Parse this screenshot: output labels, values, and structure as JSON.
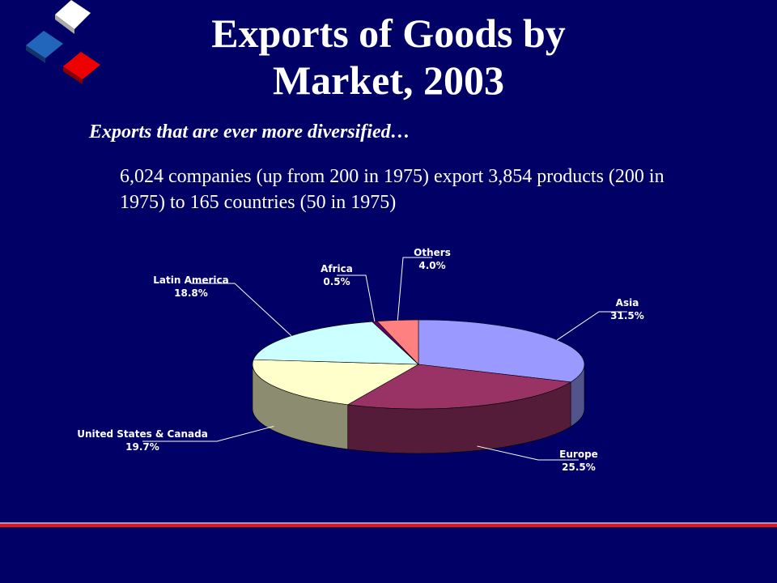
{
  "chart_data": {
    "type": "pie",
    "title": "Exports of Goods by Market, 2003",
    "subtitle": "Exports that are ever more diversified…",
    "text": "6,024 companies (up from 200 in 1975) export 3,854 products (200 in 1975) to 165 countries (50 in 1975)",
    "categories": [
      "Asia",
      "Europe",
      "United States & Canada",
      "Latin America",
      "Africa",
      "Others"
    ],
    "values": [
      31.5,
      25.5,
      19.7,
      18.8,
      0.5,
      4.0
    ],
    "value_labels": [
      "31.5%",
      "25.5%",
      "19.7%",
      "18.8%",
      "0.5%",
      "4.0%"
    ],
    "colors": [
      "#9999ff",
      "#993366",
      "#ffffcc",
      "#ccffff",
      "#660066",
      "#ff8080"
    ]
  }
}
